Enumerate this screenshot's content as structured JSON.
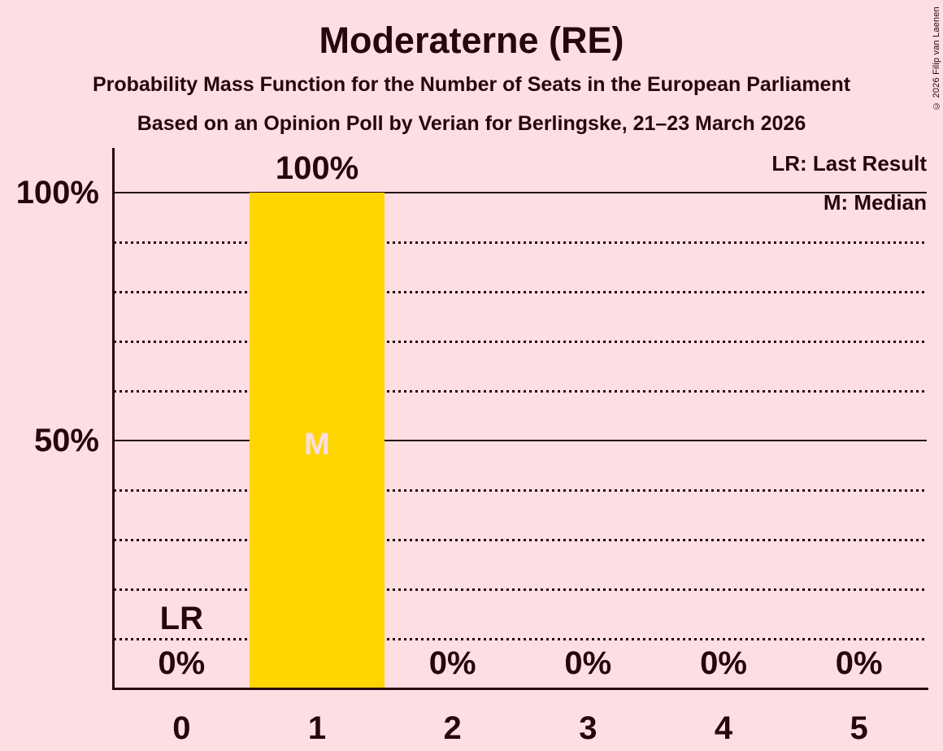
{
  "chart_data": {
    "type": "bar",
    "title": "Moderaterne (RE)",
    "subtitle": "Probability Mass Function for the Number of Seats in the European Parliament",
    "subsubtitle": "Based on an Opinion Poll by Verian for Berlingske, 21–23 March 2026",
    "xlabel": "",
    "ylabel": "",
    "categories": [
      "0",
      "1",
      "2",
      "3",
      "4",
      "5"
    ],
    "values": [
      0,
      100,
      0,
      0,
      0,
      0
    ],
    "value_labels": [
      "0%",
      "100%",
      "0%",
      "0%",
      "0%",
      "0%"
    ],
    "median_category": "1",
    "median_marker": "M",
    "last_result_category": "0",
    "last_result_marker": "LR",
    "ylim": [
      0,
      100
    ],
    "yticks": [
      {
        "label": "100%",
        "value": 100
      },
      {
        "label": "50%",
        "value": 50
      }
    ],
    "solid_gridlines": [
      50,
      100
    ],
    "dotted_gridline_step": 10,
    "legend": [
      "LR: Last Result",
      "M: Median"
    ],
    "grid": "on",
    "legend_position": "top-right",
    "colors": {
      "background": "#fcdee3",
      "bar": "#ffd500",
      "text": "#26060f"
    },
    "copyright": "© 2026 Filip van Laenen"
  }
}
